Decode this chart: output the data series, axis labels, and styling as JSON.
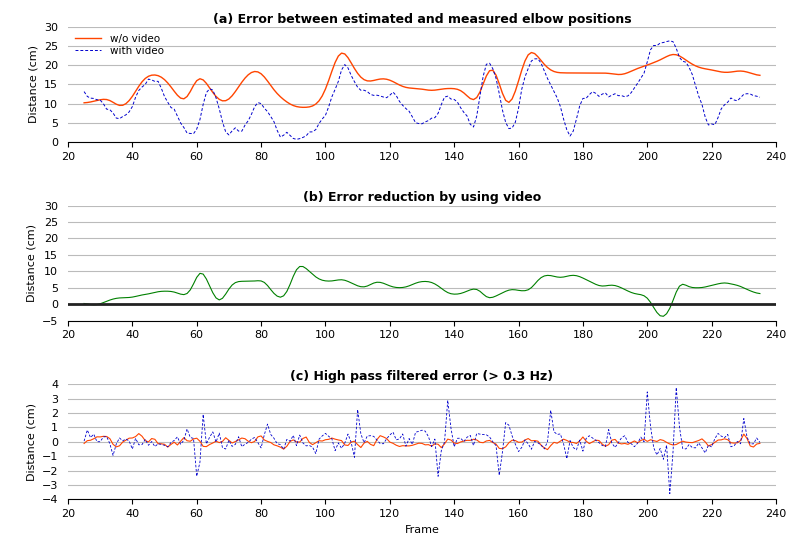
{
  "title_a": "(a) Error between estimated and measured elbow positions",
  "title_b": "(b) Error reduction by using video",
  "title_c": "(c) High pass filtered error (> 0.3 Hz)",
  "xlabel": "Frame",
  "ylabel": "Distance (cm)",
  "xlim": [
    20,
    240
  ],
  "ylim_a": [
    0,
    30
  ],
  "ylim_b": [
    -5,
    30
  ],
  "ylim_c": [
    -4,
    4
  ],
  "yticks_a": [
    0,
    5,
    10,
    15,
    20,
    25,
    30
  ],
  "yticks_b": [
    -5,
    0,
    5,
    10,
    15,
    20,
    25,
    30
  ],
  "yticks_c": [
    -4,
    -3,
    -2,
    -1,
    0,
    1,
    2,
    3,
    4
  ],
  "xticks": [
    20,
    40,
    60,
    80,
    100,
    120,
    140,
    160,
    180,
    200,
    220,
    240
  ],
  "color_wo_video": "#FF4500",
  "color_with_video": "#0000CD",
  "color_reduction": "#008000",
  "legend_wo": "w/o video",
  "legend_with": "with video",
  "background_color": "#ffffff",
  "grid_color": "#bbbbbb",
  "title_fontsize": 9,
  "axis_fontsize": 8,
  "tick_fontsize": 8
}
